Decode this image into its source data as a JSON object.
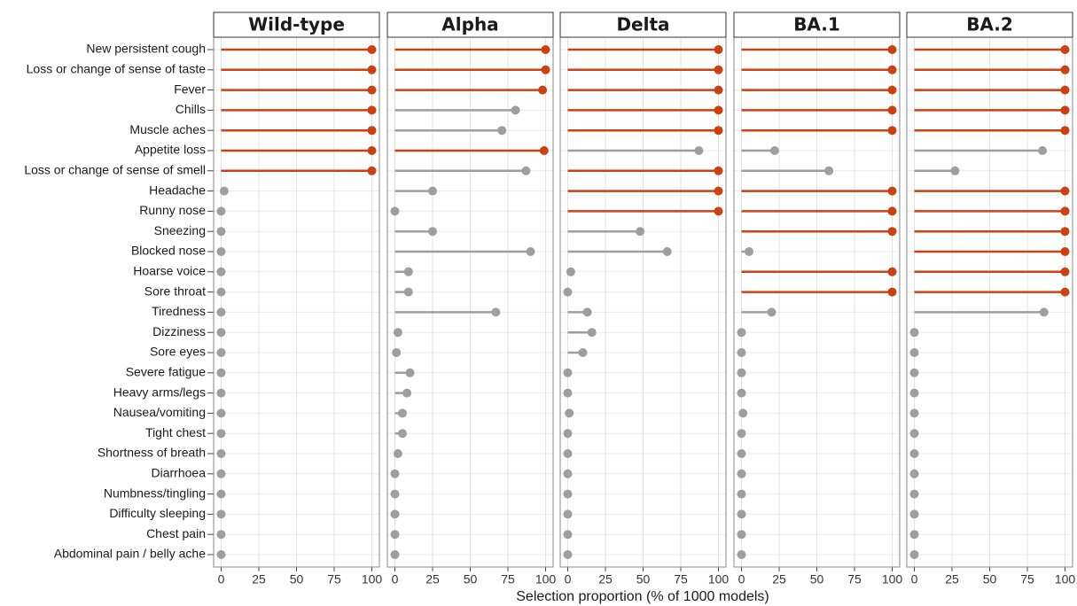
{
  "chart_data": {
    "type": "lollipop",
    "xlabel": "Selection proportion (% of 1000 models)",
    "categories": [
      "New persistent cough",
      "Loss or change of sense of taste",
      "Fever",
      "Chills",
      "Muscle aches",
      "Appetite loss",
      "Loss or change of sense of smell",
      "Headache",
      "Runny nose",
      "Sneezing",
      "Blocked nose",
      "Hoarse voice",
      "Sore throat",
      "Tiredness",
      "Dizziness",
      "Sore eyes",
      "Severe fatigue",
      "Heavy arms/legs",
      "Nausea/vomiting",
      "Tight chest",
      "Shortness of breath",
      "Diarrhoea",
      "Numbness/tingling",
      "Difficulty sleeping",
      "Chest pain",
      "Abdominal pain / belly ache"
    ],
    "xlim": [
      -5,
      105
    ],
    "xticks": [
      0,
      25,
      50,
      75,
      100
    ],
    "grid": true,
    "series": [
      {
        "name": "Wild-type",
        "values": [
          100,
          100,
          100,
          100,
          100,
          100,
          100,
          2,
          0,
          0,
          0,
          0,
          0,
          0,
          0,
          0,
          0,
          0,
          0,
          0,
          0,
          0,
          0,
          0,
          0,
          0
        ],
        "colors": [
          "#cc4112",
          "#cc4112",
          "#cc4112",
          "#cc4112",
          "#cc4112",
          "#cc4112",
          "#cc4112",
          "#9e9e9e",
          "#9e9e9e",
          "#9e9e9e",
          "#9e9e9e",
          "#9e9e9e",
          "#9e9e9e",
          "#9e9e9e",
          "#9e9e9e",
          "#9e9e9e",
          "#9e9e9e",
          "#9e9e9e",
          "#9e9e9e",
          "#9e9e9e",
          "#9e9e9e",
          "#9e9e9e",
          "#9e9e9e",
          "#9e9e9e",
          "#9e9e9e",
          "#9e9e9e"
        ]
      },
      {
        "name": "Alpha",
        "values": [
          100,
          100,
          98,
          80,
          71,
          99,
          87,
          25,
          0,
          25,
          90,
          9,
          9,
          67,
          2,
          1,
          10,
          8,
          5,
          5,
          2,
          0,
          0,
          0,
          0,
          0
        ],
        "colors": [
          "#cc4112",
          "#cc4112",
          "#cc4112",
          "#9e9e9e",
          "#9e9e9e",
          "#cc4112",
          "#9e9e9e",
          "#9e9e9e",
          "#9e9e9e",
          "#9e9e9e",
          "#9e9e9e",
          "#9e9e9e",
          "#9e9e9e",
          "#9e9e9e",
          "#9e9e9e",
          "#9e9e9e",
          "#9e9e9e",
          "#9e9e9e",
          "#9e9e9e",
          "#9e9e9e",
          "#9e9e9e",
          "#9e9e9e",
          "#9e9e9e",
          "#9e9e9e",
          "#9e9e9e",
          "#9e9e9e"
        ]
      },
      {
        "name": "Delta",
        "values": [
          100,
          100,
          100,
          100,
          100,
          87,
          100,
          100,
          100,
          48,
          66,
          2,
          0,
          13,
          16,
          10,
          0,
          0,
          1,
          0,
          0,
          0,
          0,
          0,
          0,
          0
        ],
        "colors": [
          "#cc4112",
          "#cc4112",
          "#cc4112",
          "#cc4112",
          "#cc4112",
          "#9e9e9e",
          "#cc4112",
          "#cc4112",
          "#cc4112",
          "#9e9e9e",
          "#9e9e9e",
          "#9e9e9e",
          "#9e9e9e",
          "#9e9e9e",
          "#9e9e9e",
          "#9e9e9e",
          "#9e9e9e",
          "#9e9e9e",
          "#9e9e9e",
          "#9e9e9e",
          "#9e9e9e",
          "#9e9e9e",
          "#9e9e9e",
          "#9e9e9e",
          "#9e9e9e",
          "#9e9e9e"
        ]
      },
      {
        "name": "BA.1",
        "values": [
          100,
          100,
          100,
          100,
          100,
          22,
          58,
          100,
          100,
          100,
          5,
          100,
          100,
          20,
          0,
          0,
          0,
          0,
          1,
          0,
          0,
          0,
          0,
          0,
          0,
          0
        ],
        "colors": [
          "#cc4112",
          "#cc4112",
          "#cc4112",
          "#cc4112",
          "#cc4112",
          "#9e9e9e",
          "#9e9e9e",
          "#cc4112",
          "#cc4112",
          "#cc4112",
          "#9e9e9e",
          "#cc4112",
          "#cc4112",
          "#9e9e9e",
          "#9e9e9e",
          "#9e9e9e",
          "#9e9e9e",
          "#9e9e9e",
          "#9e9e9e",
          "#9e9e9e",
          "#9e9e9e",
          "#9e9e9e",
          "#9e9e9e",
          "#9e9e9e",
          "#9e9e9e",
          "#9e9e9e"
        ]
      },
      {
        "name": "BA.2",
        "values": [
          100,
          100,
          100,
          100,
          100,
          85,
          27,
          100,
          100,
          100,
          100,
          100,
          100,
          86,
          0,
          0,
          0,
          0,
          0,
          0,
          0,
          0,
          0,
          0,
          0,
          0
        ],
        "colors": [
          "#cc4112",
          "#cc4112",
          "#cc4112",
          "#cc4112",
          "#cc4112",
          "#9e9e9e",
          "#9e9e9e",
          "#cc4112",
          "#cc4112",
          "#cc4112",
          "#cc4112",
          "#cc4112",
          "#cc4112",
          "#9e9e9e",
          "#9e9e9e",
          "#9e9e9e",
          "#9e9e9e",
          "#9e9e9e",
          "#9e9e9e",
          "#9e9e9e",
          "#9e9e9e",
          "#9e9e9e",
          "#9e9e9e",
          "#9e9e9e",
          "#9e9e9e",
          "#9e9e9e"
        ]
      }
    ]
  }
}
